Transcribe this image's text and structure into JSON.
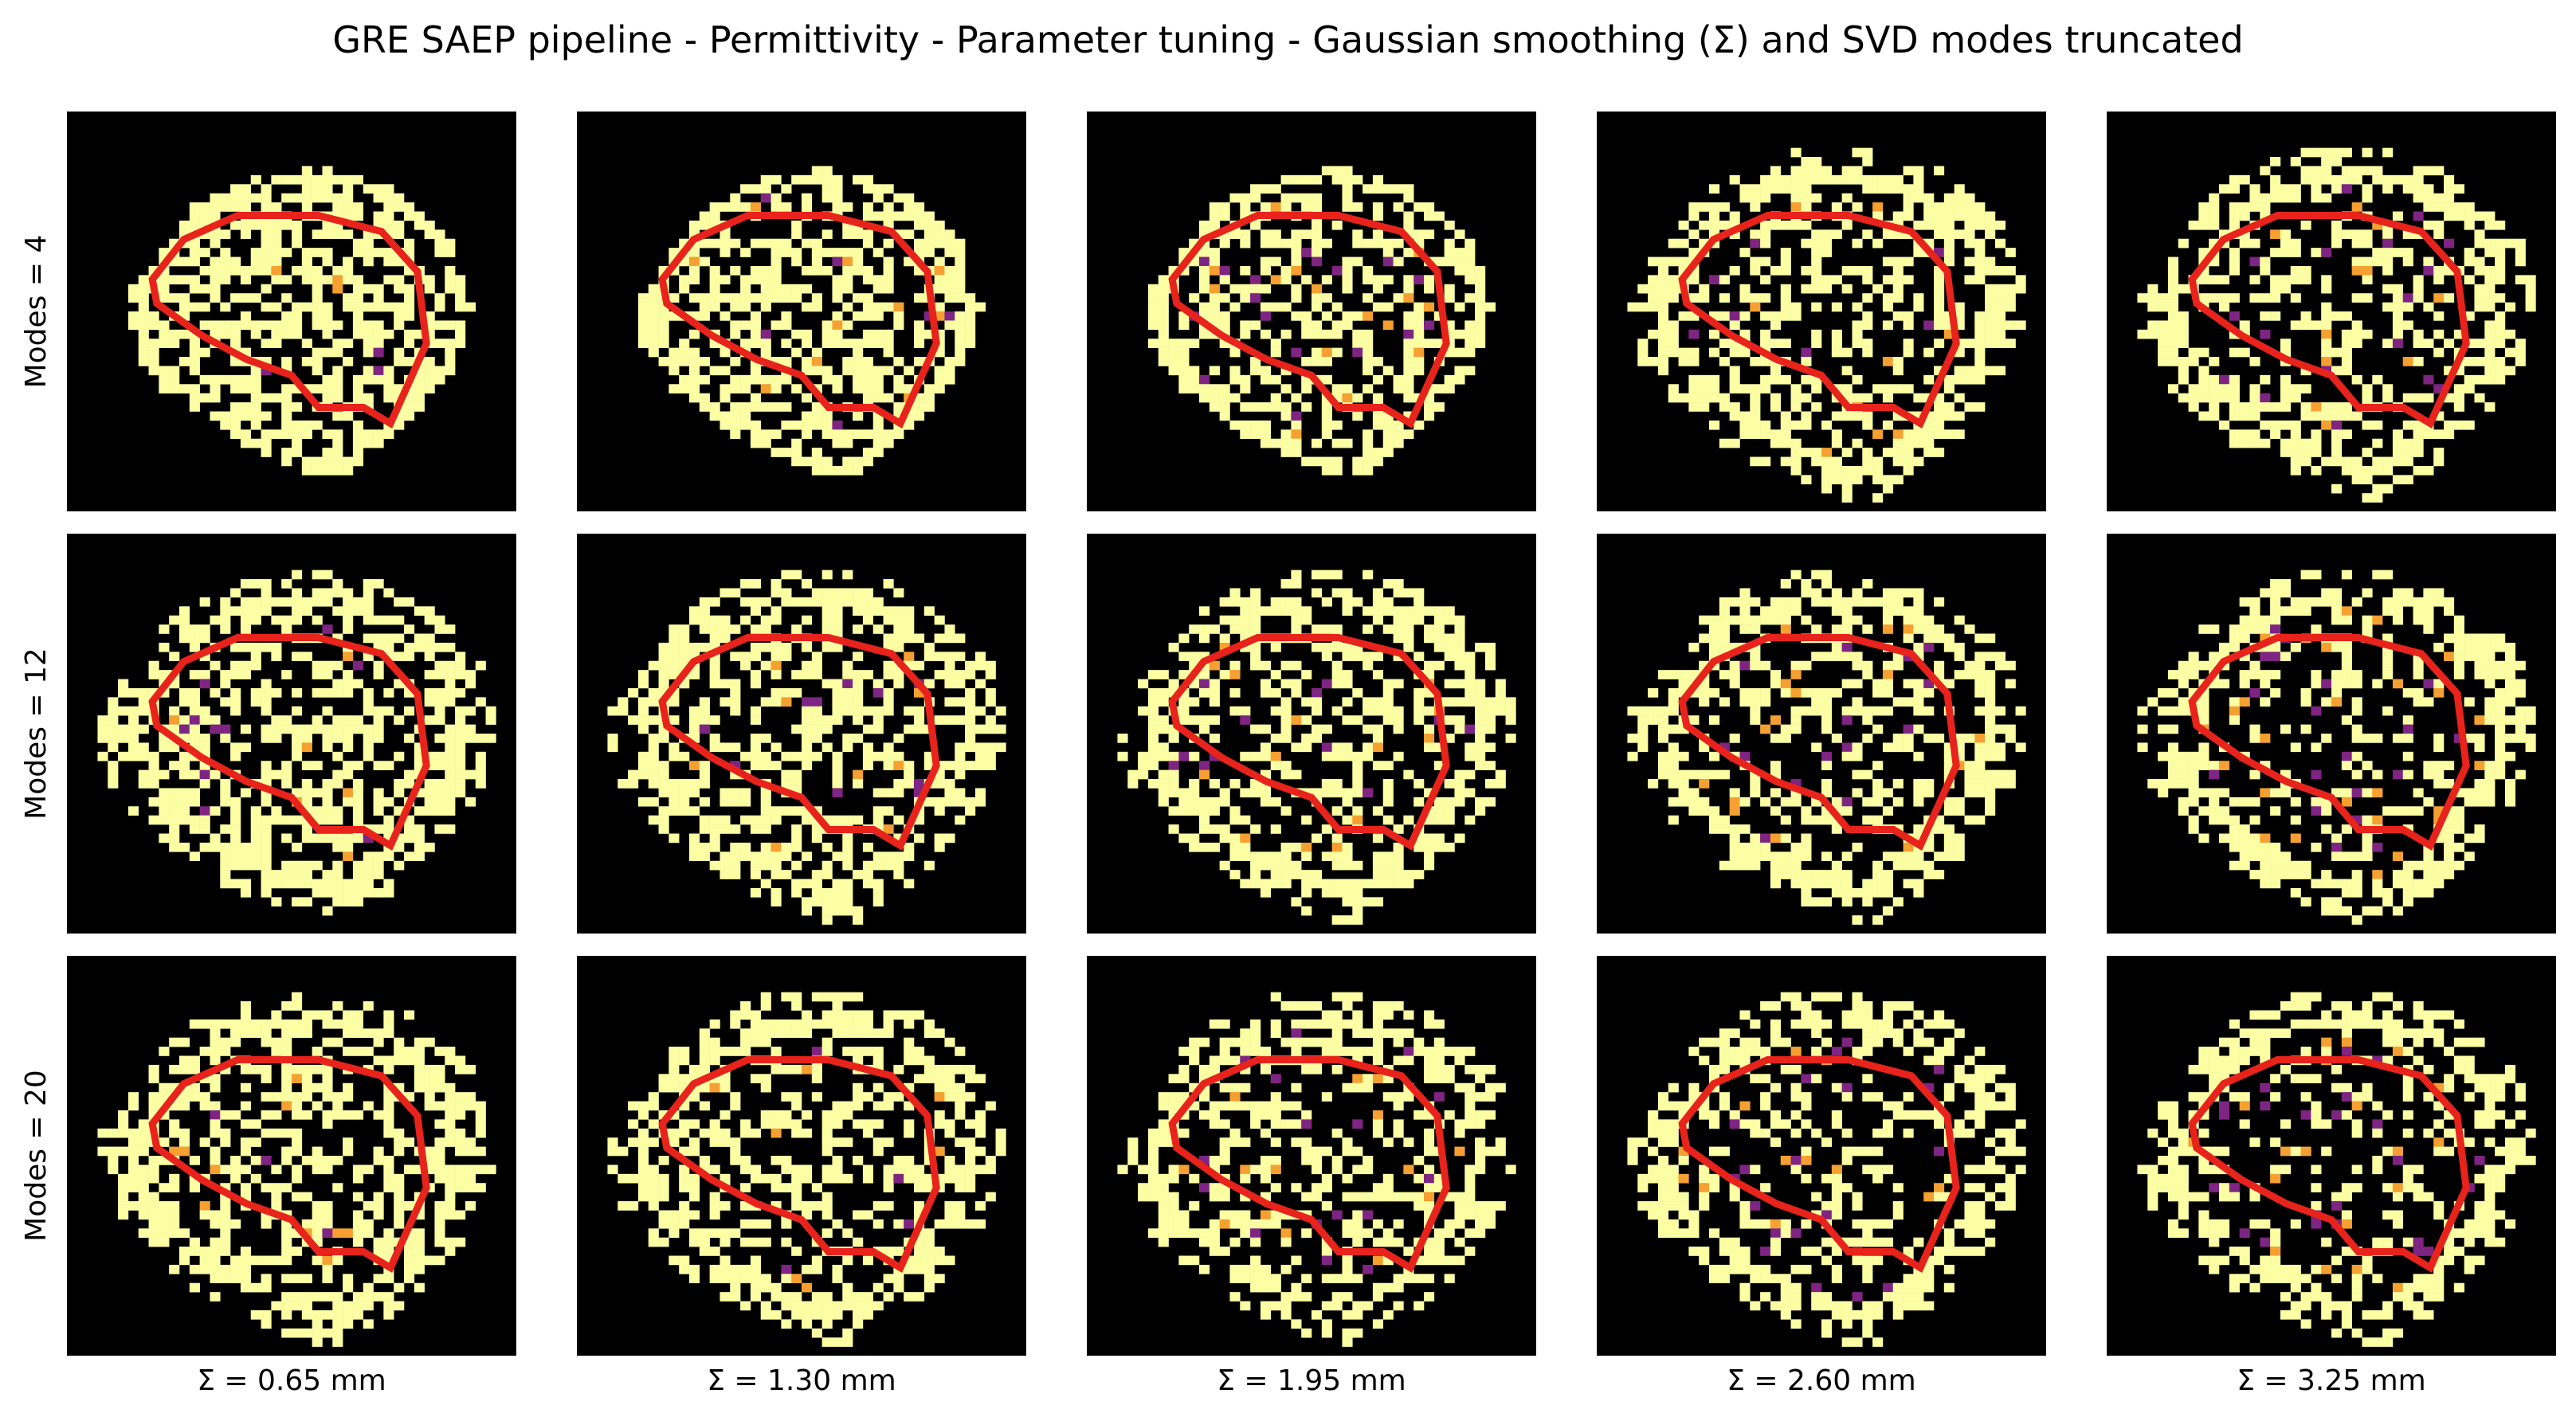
{
  "figure": {
    "title": "GRE SAEP pipeline - Permittivity - Parameter tuning - Gaussian smoothing (Σ) and SVD modes truncated"
  },
  "rows": [
    {
      "label": "Modes = 4"
    },
    {
      "label": "Modes = 12"
    },
    {
      "label": "Modes = 20"
    }
  ],
  "columns": [
    {
      "label": "Σ = 0.65 mm"
    },
    {
      "label": "Σ = 1.30 mm"
    },
    {
      "label": "Σ = 1.95 mm"
    },
    {
      "label": "Σ = 2.60 mm"
    },
    {
      "label": "Σ = 3.25 mm"
    }
  ],
  "colors": {
    "background": "#000000",
    "tissue": "#fcfea4",
    "contour": "#e8231c",
    "mid_orange": "#f5a030",
    "purple": "#7e2482",
    "dark_purple": "#3d0a5e"
  },
  "colormap": "inferno",
  "overlay": "red contour outline"
}
